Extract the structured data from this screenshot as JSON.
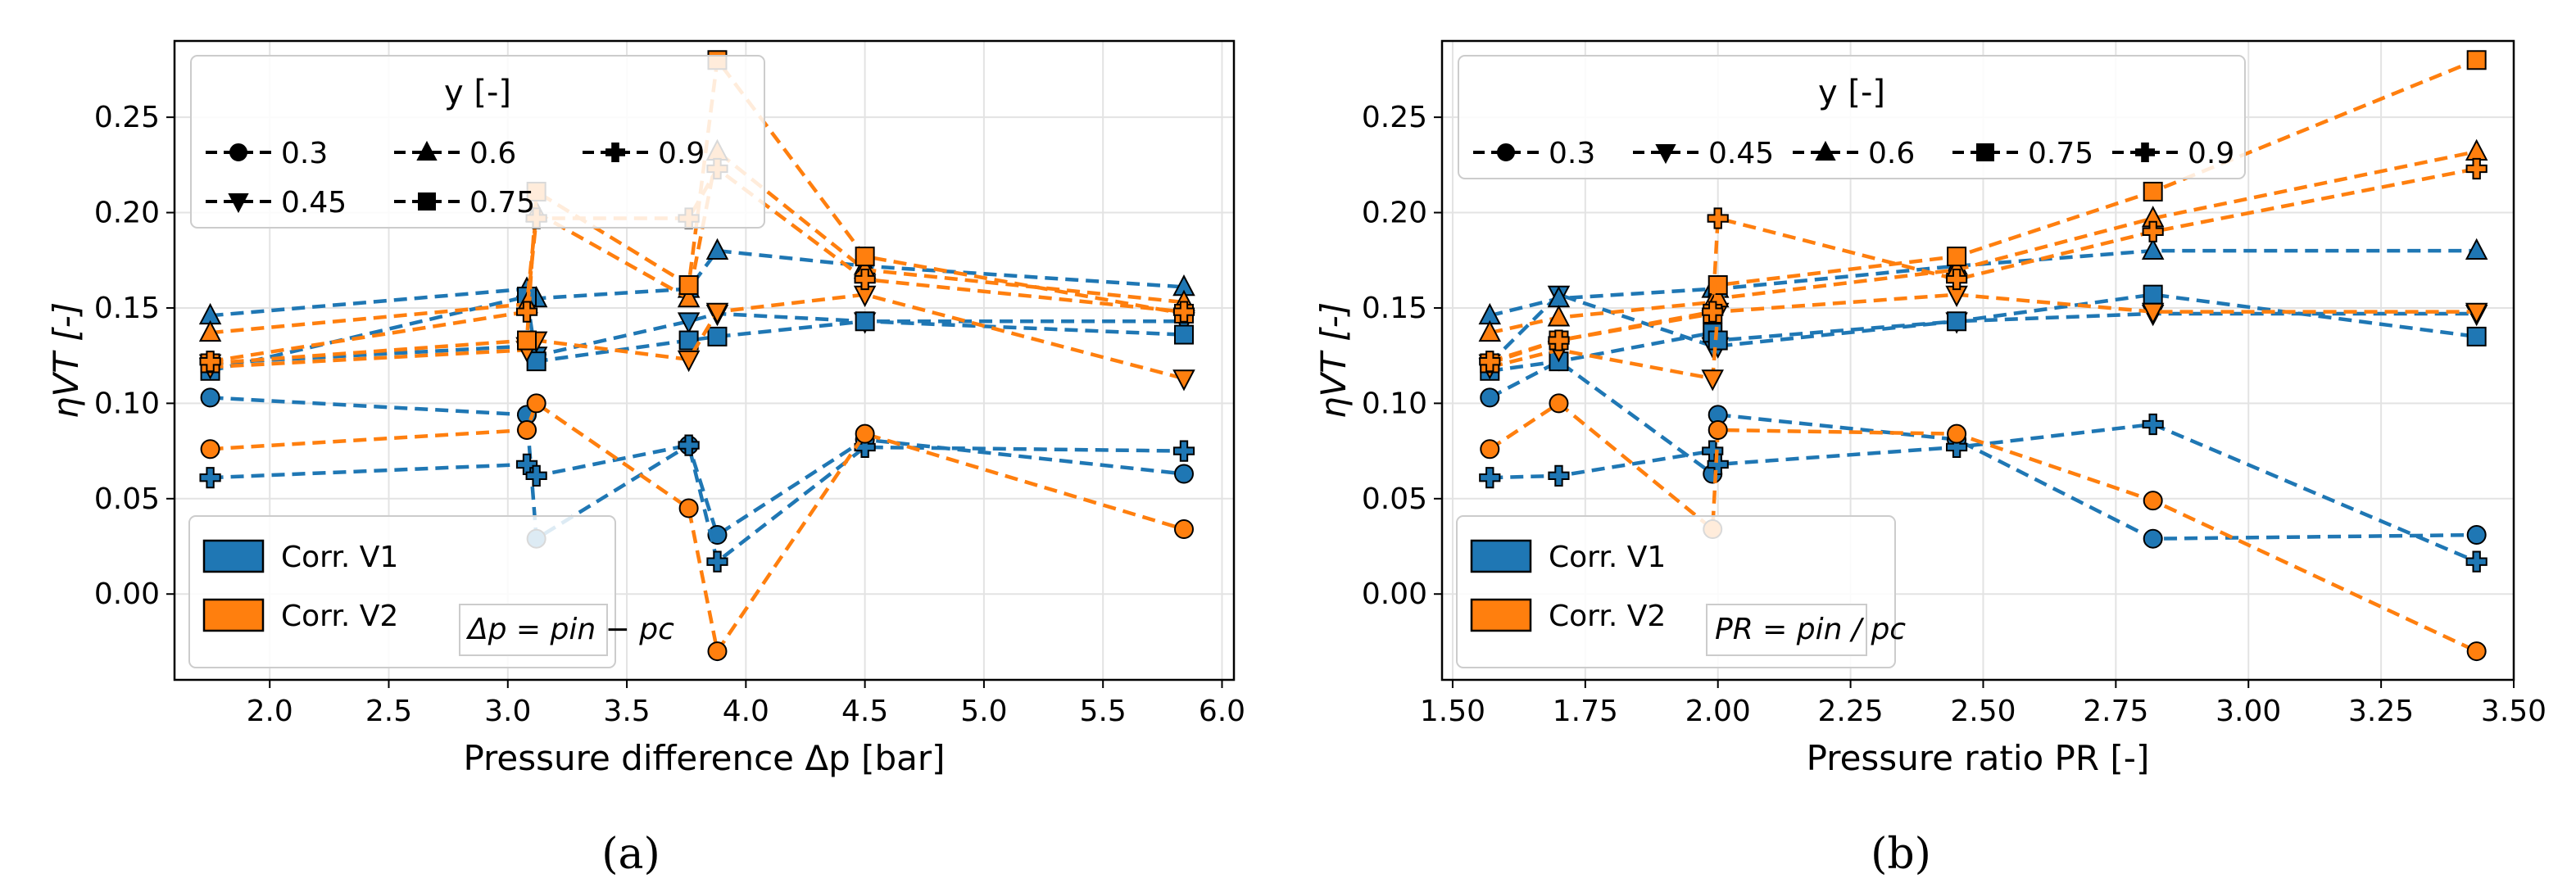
{
  "colors": {
    "v1": "#1f77b4",
    "v2": "#ff7f0e"
  },
  "chart_data": [
    {
      "id": "a",
      "type": "line",
      "caption": "(a)",
      "xlabel": "Pressure difference Δp [bar]",
      "ylabel": "ηVT [-]",
      "xlim": [
        1.6,
        6.05
      ],
      "ylim": [
        -0.045,
        0.29
      ],
      "xticks": [
        "2.0",
        "2.5",
        "3.0",
        "3.5",
        "4.0",
        "4.5",
        "5.0",
        "5.5",
        "6.0"
      ],
      "yticks": [
        "0.00",
        "0.05",
        "0.10",
        "0.15",
        "0.20",
        "0.25"
      ],
      "grid": true,
      "legend_marker": {
        "title": "y [-]",
        "entries": [
          "0.3",
          "0.6",
          "0.9",
          "0.45",
          "0.75"
        ],
        "placement": "top-left"
      },
      "legend_corr": {
        "entries": [
          "Corr. V1",
          "Corr. V2"
        ],
        "placement": "bottom-left"
      },
      "annotation": "Δp = pin − pc",
      "series": [
        {
          "corr": "v1",
          "y": "0.3",
          "marker": "circle",
          "x": [
            1.75,
            3.08,
            3.12,
            3.76,
            3.88,
            4.5,
            5.84
          ],
          "values": [
            0.103,
            0.094,
            0.029,
            0.078,
            0.031,
            0.081,
            0.063
          ]
        },
        {
          "corr": "v1",
          "y": "0.45",
          "marker": "tri-down",
          "x": [
            1.75,
            3.08,
            3.12,
            3.76,
            3.88,
            4.5,
            5.84
          ],
          "values": [
            0.121,
            0.13,
            0.125,
            0.143,
            0.147,
            0.143,
            0.143
          ]
        },
        {
          "corr": "v1",
          "y": "0.6",
          "marker": "tri-up",
          "x": [
            1.75,
            3.08,
            3.12,
            3.76,
            3.88,
            4.5,
            5.84
          ],
          "values": [
            0.146,
            0.16,
            0.155,
            0.16,
            0.18,
            0.172,
            0.161
          ]
        },
        {
          "corr": "v1",
          "y": "0.75",
          "marker": "square",
          "x": [
            1.75,
            3.08,
            3.12,
            3.76,
            3.88,
            4.5,
            5.84
          ],
          "values": [
            0.117,
            0.156,
            0.122,
            0.133,
            0.135,
            0.143,
            0.136
          ]
        },
        {
          "corr": "v1",
          "y": "0.9",
          "marker": "plus",
          "x": [
            1.75,
            3.08,
            3.12,
            3.76,
            3.88,
            4.5,
            5.84
          ],
          "values": [
            0.061,
            0.068,
            0.062,
            0.078,
            0.017,
            0.077,
            0.075
          ]
        },
        {
          "corr": "v2",
          "y": "0.3",
          "marker": "circle",
          "x": [
            1.75,
            3.08,
            3.12,
            3.76,
            3.88,
            4.5,
            5.84
          ],
          "values": [
            0.076,
            0.086,
            0.1,
            0.045,
            -0.03,
            0.084,
            0.034
          ]
        },
        {
          "corr": "v2",
          "y": "0.45",
          "marker": "tri-down",
          "x": [
            1.75,
            3.08,
            3.12,
            3.76,
            3.88,
            4.5,
            5.84
          ],
          "values": [
            0.119,
            0.128,
            0.133,
            0.123,
            0.148,
            0.157,
            0.113
          ]
        },
        {
          "corr": "v2",
          "y": "0.6",
          "marker": "tri-up",
          "x": [
            1.75,
            3.08,
            3.12,
            3.76,
            3.88,
            4.5,
            5.84
          ],
          "values": [
            0.137,
            0.152,
            0.2,
            0.155,
            0.232,
            0.17,
            0.153
          ]
        },
        {
          "corr": "v2",
          "y": "0.75",
          "marker": "square",
          "x": [
            1.75,
            3.08,
            3.12,
            3.76,
            3.88,
            4.5,
            5.84
          ],
          "values": [
            0.121,
            0.133,
            0.211,
            0.162,
            0.28,
            0.177,
            0.147
          ]
        },
        {
          "corr": "v2",
          "y": "0.9",
          "marker": "plus",
          "x": [
            1.75,
            3.08,
            3.12,
            3.76,
            3.88,
            4.5,
            5.84
          ],
          "values": [
            0.122,
            0.148,
            0.197,
            0.197,
            0.223,
            0.165,
            0.148
          ]
        }
      ]
    },
    {
      "id": "b",
      "type": "line",
      "caption": "(b)",
      "xlabel": "Pressure ratio PR [-]",
      "ylabel": "ηVT [-]",
      "xlim": [
        1.48,
        3.5
      ],
      "ylim": [
        -0.045,
        0.29
      ],
      "xticks": [
        "1.50",
        "1.75",
        "2.00",
        "2.25",
        "2.50",
        "2.75",
        "3.00",
        "3.25",
        "3.50"
      ],
      "yticks": [
        "0.00",
        "0.05",
        "0.10",
        "0.15",
        "0.20",
        "0.25"
      ],
      "grid": true,
      "legend_marker": {
        "title": "y [-]",
        "entries": [
          "0.3",
          "0.45",
          "0.6",
          "0.75",
          "0.9"
        ],
        "placement": "top-left"
      },
      "legend_corr": {
        "entries": [
          "Corr. V1",
          "Corr. V2"
        ],
        "placement": "bottom-left"
      },
      "annotation": "PR = pin / pc",
      "series": [
        {
          "corr": "v1",
          "y": "0.3",
          "marker": "circle",
          "x": [
            1.57,
            1.7,
            1.99,
            2.0,
            2.45,
            2.82,
            3.43
          ],
          "values": [
            0.103,
            0.122,
            0.063,
            0.094,
            0.081,
            0.029,
            0.031
          ]
        },
        {
          "corr": "v1",
          "y": "0.45",
          "marker": "tri-down",
          "x": [
            1.57,
            1.7,
            1.99,
            2.0,
            2.45,
            2.82,
            3.43
          ],
          "values": [
            0.121,
            0.157,
            0.13,
            0.13,
            0.143,
            0.147,
            0.147
          ]
        },
        {
          "corr": "v1",
          "y": "0.6",
          "marker": "tri-up",
          "x": [
            1.57,
            1.7,
            1.99,
            2.0,
            2.45,
            2.82,
            3.43
          ],
          "values": [
            0.146,
            0.155,
            0.16,
            0.16,
            0.172,
            0.18,
            0.18
          ]
        },
        {
          "corr": "v1",
          "y": "0.75",
          "marker": "square",
          "x": [
            1.57,
            1.7,
            1.99,
            2.0,
            2.45,
            2.82,
            3.43
          ],
          "values": [
            0.117,
            0.122,
            0.137,
            0.133,
            0.143,
            0.157,
            0.135
          ]
        },
        {
          "corr": "v1",
          "y": "0.9",
          "marker": "plus",
          "x": [
            1.57,
            1.7,
            1.99,
            2.0,
            2.45,
            2.82,
            3.43
          ],
          "values": [
            0.061,
            0.062,
            0.075,
            0.068,
            0.077,
            0.089,
            0.017
          ]
        },
        {
          "corr": "v2",
          "y": "0.3",
          "marker": "circle",
          "x": [
            1.57,
            1.7,
            1.99,
            2.0,
            2.45,
            2.82,
            3.43
          ],
          "values": [
            0.076,
            0.1,
            0.034,
            0.086,
            0.084,
            0.049,
            -0.03
          ]
        },
        {
          "corr": "v2",
          "y": "0.45",
          "marker": "tri-down",
          "x": [
            1.57,
            1.7,
            1.99,
            2.0,
            2.45,
            2.82,
            3.43
          ],
          "values": [
            0.119,
            0.128,
            0.113,
            0.148,
            0.157,
            0.148,
            0.148
          ]
        },
        {
          "corr": "v2",
          "y": "0.6",
          "marker": "tri-up",
          "x": [
            1.57,
            1.7,
            1.99,
            2.0,
            2.45,
            2.82,
            3.43
          ],
          "values": [
            0.137,
            0.145,
            0.153,
            0.155,
            0.17,
            0.197,
            0.232
          ]
        },
        {
          "corr": "v2",
          "y": "0.75",
          "marker": "square",
          "x": [
            1.57,
            1.7,
            1.99,
            2.0,
            2.45,
            2.82,
            3.43
          ],
          "values": [
            0.121,
            0.133,
            0.147,
            0.162,
            0.177,
            0.211,
            0.28
          ]
        },
        {
          "corr": "v2",
          "y": "0.9",
          "marker": "plus",
          "x": [
            1.57,
            1.7,
            1.99,
            2.0,
            2.45,
            2.82,
            3.43
          ],
          "values": [
            0.122,
            0.133,
            0.148,
            0.197,
            0.165,
            0.19,
            0.223
          ]
        }
      ]
    }
  ]
}
